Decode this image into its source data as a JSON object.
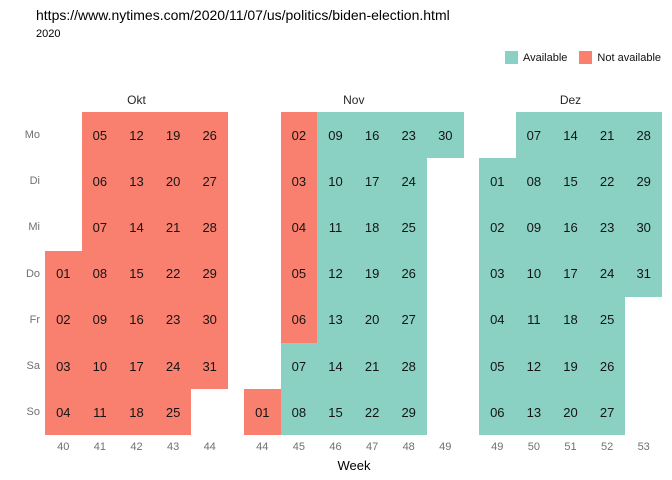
{
  "chart_data": {
    "type": "heatmap",
    "subtype": "calendar-availability",
    "title": "https://www.nytimes.com/2020/11/07/us/politics/biden-election.html",
    "subtitle": "2020",
    "xlabel": "Week",
    "legend_position": "top-right",
    "grid": false,
    "colors": {
      "available": "#8AD1C4",
      "not_available": "#F9806F"
    },
    "legend": [
      {
        "label": "Available",
        "color": "#8AD1C4"
      },
      {
        "label": "Not available",
        "color": "#F9806F"
      }
    ],
    "weekday_labels": [
      "Mo",
      "Di",
      "Mi",
      "Do",
      "Fr",
      "Sa",
      "So"
    ],
    "months": [
      {
        "name": "Okt",
        "weeks": [
          40,
          41,
          42,
          43,
          44
        ],
        "rows": [
          [
            null,
            {
              "day": "05",
              "available": false
            },
            {
              "day": "12",
              "available": false
            },
            {
              "day": "19",
              "available": false
            },
            {
              "day": "26",
              "available": false
            }
          ],
          [
            null,
            {
              "day": "06",
              "available": false
            },
            {
              "day": "13",
              "available": false
            },
            {
              "day": "20",
              "available": false
            },
            {
              "day": "27",
              "available": false
            }
          ],
          [
            null,
            {
              "day": "07",
              "available": false
            },
            {
              "day": "14",
              "available": false
            },
            {
              "day": "21",
              "available": false
            },
            {
              "day": "28",
              "available": false
            }
          ],
          [
            {
              "day": "01",
              "available": false
            },
            {
              "day": "08",
              "available": false
            },
            {
              "day": "15",
              "available": false
            },
            {
              "day": "22",
              "available": false
            },
            {
              "day": "29",
              "available": false
            }
          ],
          [
            {
              "day": "02",
              "available": false
            },
            {
              "day": "09",
              "available": false
            },
            {
              "day": "16",
              "available": false
            },
            {
              "day": "23",
              "available": false
            },
            {
              "day": "30",
              "available": false
            }
          ],
          [
            {
              "day": "03",
              "available": false
            },
            {
              "day": "10",
              "available": false
            },
            {
              "day": "17",
              "available": false
            },
            {
              "day": "24",
              "available": false
            },
            {
              "day": "31",
              "available": false
            }
          ],
          [
            {
              "day": "04",
              "available": false
            },
            {
              "day": "11",
              "available": false
            },
            {
              "day": "18",
              "available": false
            },
            {
              "day": "25",
              "available": false
            },
            null
          ]
        ]
      },
      {
        "name": "Nov",
        "weeks": [
          44,
          45,
          46,
          47,
          48,
          49
        ],
        "rows": [
          [
            null,
            {
              "day": "02",
              "available": false
            },
            {
              "day": "09",
              "available": true
            },
            {
              "day": "16",
              "available": true
            },
            {
              "day": "23",
              "available": true
            },
            {
              "day": "30",
              "available": true
            }
          ],
          [
            null,
            {
              "day": "03",
              "available": false
            },
            {
              "day": "10",
              "available": true
            },
            {
              "day": "17",
              "available": true
            },
            {
              "day": "24",
              "available": true
            },
            null
          ],
          [
            null,
            {
              "day": "04",
              "available": false
            },
            {
              "day": "11",
              "available": true
            },
            {
              "day": "18",
              "available": true
            },
            {
              "day": "25",
              "available": true
            },
            null
          ],
          [
            null,
            {
              "day": "05",
              "available": false
            },
            {
              "day": "12",
              "available": true
            },
            {
              "day": "19",
              "available": true
            },
            {
              "day": "26",
              "available": true
            },
            null
          ],
          [
            null,
            {
              "day": "06",
              "available": false
            },
            {
              "day": "13",
              "available": true
            },
            {
              "day": "20",
              "available": true
            },
            {
              "day": "27",
              "available": true
            },
            null
          ],
          [
            null,
            {
              "day": "07",
              "available": true
            },
            {
              "day": "14",
              "available": true
            },
            {
              "day": "21",
              "available": true
            },
            {
              "day": "28",
              "available": true
            },
            null
          ],
          [
            {
              "day": "01",
              "available": false
            },
            {
              "day": "08",
              "available": true
            },
            {
              "day": "15",
              "available": true
            },
            {
              "day": "22",
              "available": true
            },
            {
              "day": "29",
              "available": true
            },
            null
          ]
        ]
      },
      {
        "name": "Dez",
        "weeks": [
          49,
          50,
          51,
          52,
          53
        ],
        "rows": [
          [
            null,
            {
              "day": "07",
              "available": true
            },
            {
              "day": "14",
              "available": true
            },
            {
              "day": "21",
              "available": true
            },
            {
              "day": "28",
              "available": true
            }
          ],
          [
            {
              "day": "01",
              "available": true
            },
            {
              "day": "08",
              "available": true
            },
            {
              "day": "15",
              "available": true
            },
            {
              "day": "22",
              "available": true
            },
            {
              "day": "29",
              "available": true
            }
          ],
          [
            {
              "day": "02",
              "available": true
            },
            {
              "day": "09",
              "available": true
            },
            {
              "day": "16",
              "available": true
            },
            {
              "day": "23",
              "available": true
            },
            {
              "day": "30",
              "available": true
            }
          ],
          [
            {
              "day": "03",
              "available": true
            },
            {
              "day": "10",
              "available": true
            },
            {
              "day": "17",
              "available": true
            },
            {
              "day": "24",
              "available": true
            },
            {
              "day": "31",
              "available": true
            }
          ],
          [
            {
              "day": "04",
              "available": true
            },
            {
              "day": "11",
              "available": true
            },
            {
              "day": "18",
              "available": true
            },
            {
              "day": "25",
              "available": true
            },
            null
          ],
          [
            {
              "day": "05",
              "available": true
            },
            {
              "day": "12",
              "available": true
            },
            {
              "day": "19",
              "available": true
            },
            {
              "day": "26",
              "available": true
            },
            null
          ],
          [
            {
              "day": "06",
              "available": true
            },
            {
              "day": "13",
              "available": true
            },
            {
              "day": "20",
              "available": true
            },
            {
              "day": "27",
              "available": true
            },
            null
          ]
        ]
      }
    ]
  }
}
